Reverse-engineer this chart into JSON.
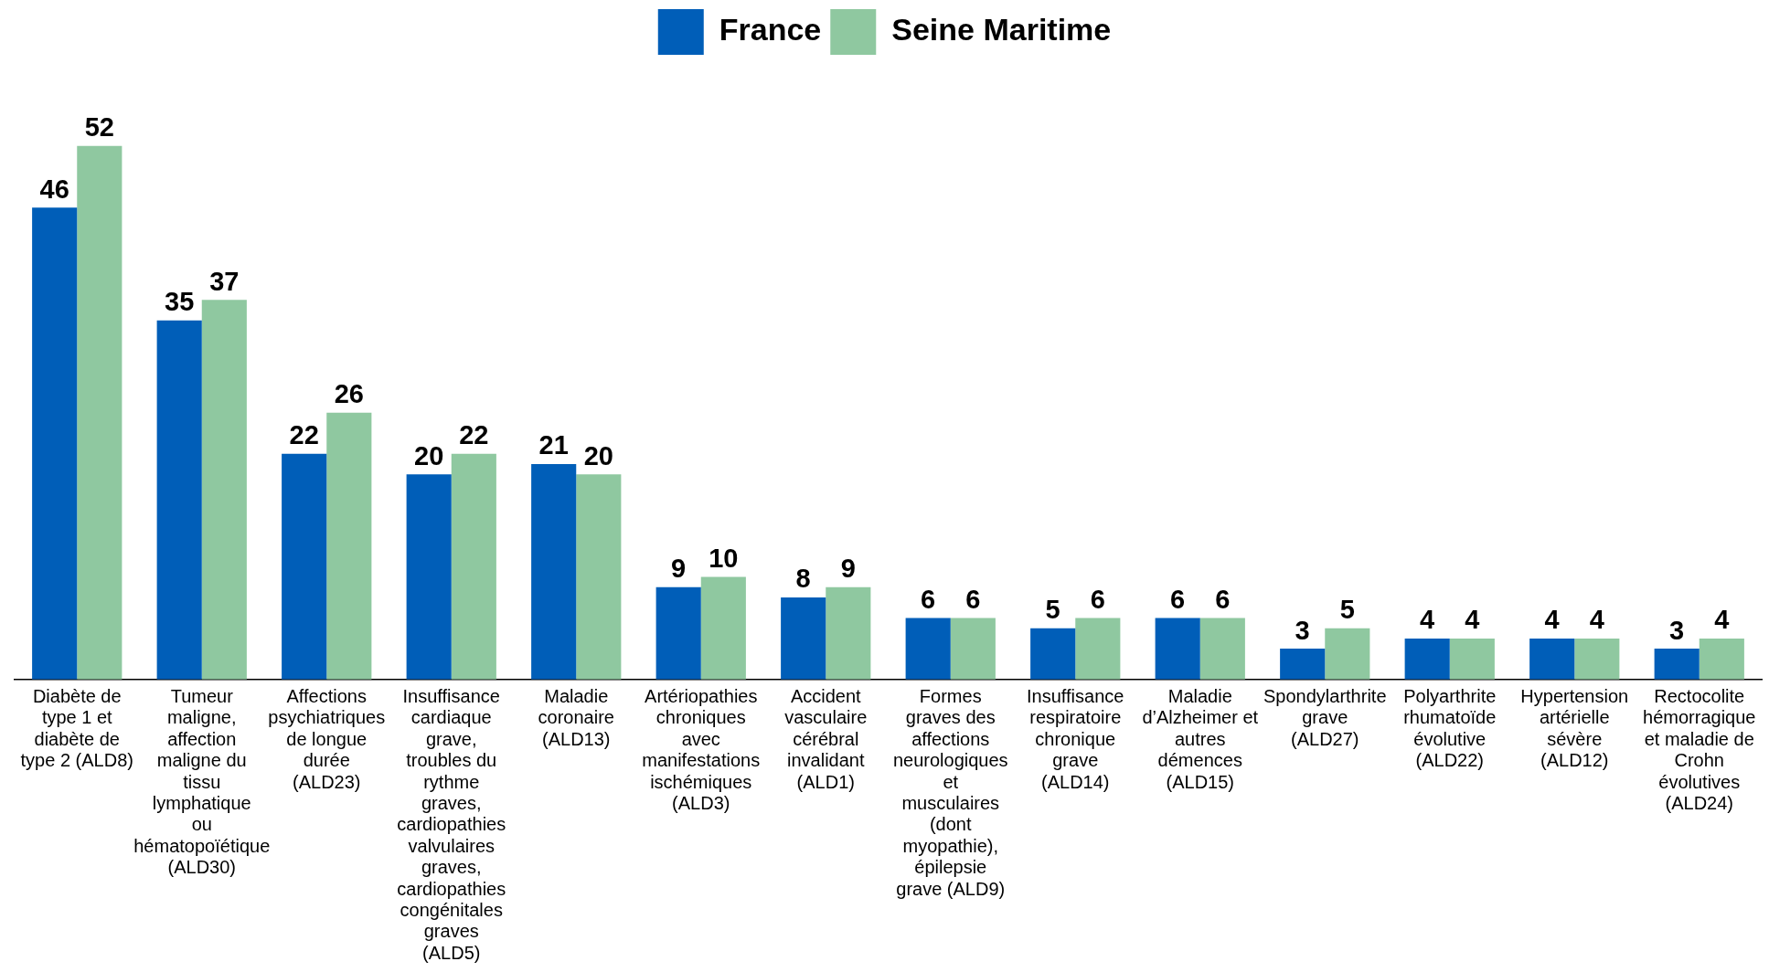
{
  "chart_data": {
    "type": "bar",
    "categories": [
      "Diabète de type 1 et diabète de type 2 (ALD8)",
      "Tumeur maligne, affection maligne du tissu lymphatique ou hématopoïétique (ALD30)",
      "Affections psychiatriques de longue durée (ALD23)",
      "Insuffisance cardiaque grave, troubles du rythme graves, cardiopathies valvulaires graves, cardiopathies congénitales graves (ALD5)",
      "Maladie coronaire (ALD13)",
      "Artériopathies chroniques avec manifestations ischémiques (ALD3)",
      "Accident vasculaire cérébral invalidant (ALD1)",
      "Formes graves des affections neurologiques et musculaires (dont myopathie), épilepsie grave (ALD9)",
      "Insuffisance respiratoire chronique grave (ALD14)",
      "Maladie d’Alzheimer et autres démences (ALD15)",
      "Spondylarthrite grave (ALD27)",
      "Polyarthrite rhumatoïde évolutive (ALD22)",
      "Hypertension artérielle sévère (ALD12)",
      "Rectocolite hémorragique et maladie de Crohn évolutives (ALD24)"
    ],
    "series": [
      {
        "name": "France",
        "color": "#005eb8",
        "values": [
          46,
          35,
          22,
          20,
          21,
          9,
          8,
          6,
          5,
          6,
          3,
          4,
          4,
          3
        ]
      },
      {
        "name": "Seine Maritime",
        "color": "#8fc8a0",
        "values": [
          52,
          37,
          26,
          22,
          20,
          10,
          9,
          6,
          6,
          6,
          5,
          4,
          4,
          4
        ]
      }
    ],
    "data_labels": true,
    "legend": "top",
    "grid": false
  }
}
